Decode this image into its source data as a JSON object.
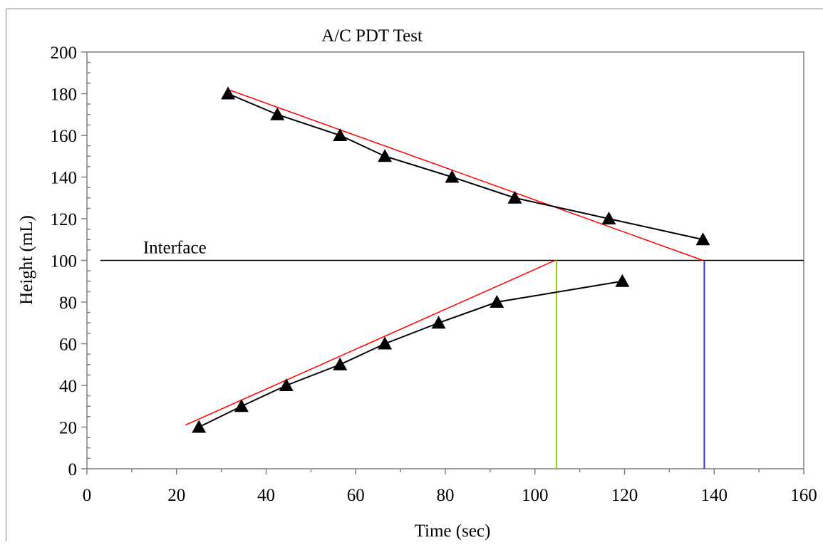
{
  "chart_data": {
    "type": "line",
    "title": "A/C PDT Test",
    "xlabel": "Time (sec)",
    "ylabel": "Height (mL)",
    "xlim": [
      0,
      160
    ],
    "ylim": [
      0,
      200
    ],
    "x_ticks": [
      "0",
      "20",
      "40",
      "60",
      "80",
      "100",
      "120",
      "140",
      "160"
    ],
    "y_ticks": [
      "0",
      "20",
      "40",
      "60",
      "80",
      "100",
      "120",
      "140",
      "160",
      "180",
      "200"
    ],
    "grid": false,
    "series": [
      {
        "marker": "triangle",
        "color": "#000000",
        "points": [
          [
            31.5,
            180
          ],
          [
            42.5,
            170
          ],
          [
            56.5,
            160
          ],
          [
            66.5,
            150
          ],
          [
            81.5,
            140
          ],
          [
            95.5,
            130
          ],
          [
            116.5,
            120
          ],
          [
            137.5,
            110
          ]
        ]
      },
      {
        "marker": "triangle",
        "color": "#000000",
        "points": [
          [
            25,
            20
          ],
          [
            34.5,
            30
          ],
          [
            44.5,
            40
          ],
          [
            56.5,
            50
          ],
          [
            66.5,
            60
          ],
          [
            78.5,
            70
          ],
          [
            91.5,
            80
          ],
          [
            119.5,
            90
          ]
        ]
      }
    ],
    "fit_lines": [
      {
        "color": "#ff0000",
        "from": [
          31.5,
          182
        ],
        "to": [
          137.5,
          100
        ]
      },
      {
        "color": "#ff0000",
        "from": [
          22,
          21
        ],
        "to": [
          104.5,
          100
        ]
      }
    ],
    "reference_lines": [
      {
        "orientation": "horizontal",
        "value": 100,
        "from": 3,
        "to": 160,
        "color": "#000000",
        "label": "Interface"
      },
      {
        "orientation": "vertical",
        "value": 104.8,
        "from": 0,
        "to": 100,
        "color": "#99cc00"
      },
      {
        "orientation": "vertical",
        "value": 137.8,
        "from": 0,
        "to": 100,
        "color": "#3333cc"
      }
    ]
  }
}
